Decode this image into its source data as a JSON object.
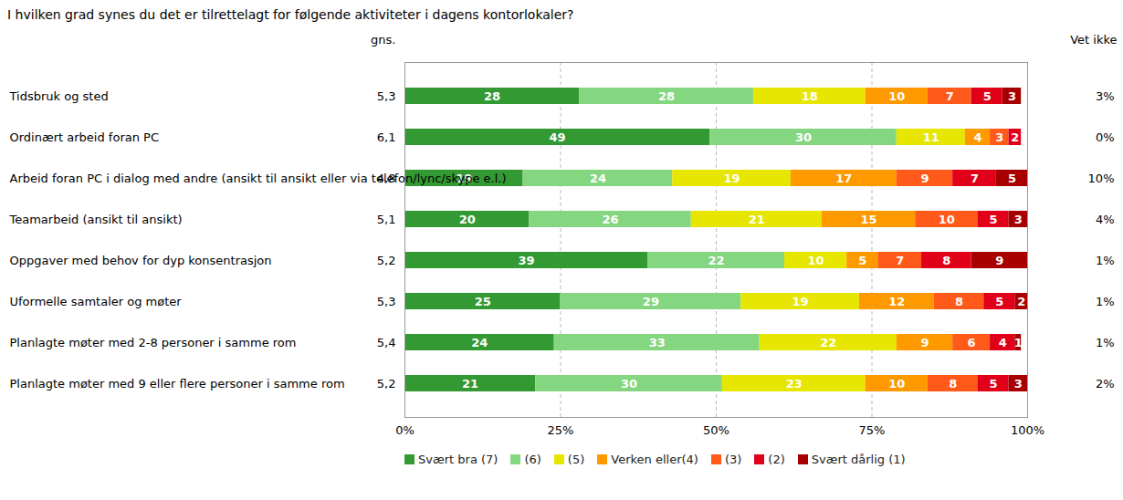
{
  "chart_data": {
    "type": "bar",
    "orientation": "horizontal",
    "stacked": true,
    "data_labels": true,
    "grid": true,
    "title": "I hvilken grad synes du det er tilrettelagt for følgende aktiviteter i dagens kontorlokaler?",
    "categories": [
      "Tidsbruk og sted",
      "Ordinært arbeid foran PC",
      "Arbeid foran PC i dialog med andre (ansikt til ansikt eller via telefon/lync/skype e.l.)",
      "Teamarbeid (ansikt til ansikt)",
      "Oppgaver med behov for dyp konsentrasjon",
      "Uformelle samtaler og møter",
      "Planlagte møter med 2-8 personer i samme rom",
      "Planlagte møter med 9 eller flere personer i samme rom"
    ],
    "series": [
      {
        "name": "Svært bra (7)",
        "color": "#339933",
        "values": [
          28,
          49,
          19,
          20,
          39,
          25,
          24,
          21
        ]
      },
      {
        "name": "(6)",
        "color": "#85d680",
        "values": [
          28,
          30,
          24,
          26,
          22,
          29,
          33,
          30
        ]
      },
      {
        "name": "(5)",
        "color": "#e6e600",
        "values": [
          18,
          11,
          19,
          21,
          10,
          19,
          22,
          23
        ]
      },
      {
        "name": "Verken eller(4)",
        "color": "#ff9900",
        "values": [
          10,
          4,
          17,
          15,
          5,
          12,
          9,
          10
        ]
      },
      {
        "name": "(3)",
        "color": "#ff5a1a",
        "values": [
          7,
          3,
          9,
          10,
          7,
          8,
          6,
          8
        ]
      },
      {
        "name": "(2)",
        "color": "#e0001a",
        "values": [
          5,
          2,
          7,
          5,
          8,
          5,
          4,
          5
        ]
      },
      {
        "name": "Svært dårlig (1)",
        "color": "#a80000",
        "values": [
          3,
          null,
          5,
          3,
          9,
          2,
          1,
          3
        ]
      }
    ],
    "xlim": [
      0,
      100
    ],
    "xticks": [
      {
        "value": 0,
        "label": "0%"
      },
      {
        "value": 25,
        "label": "25%"
      },
      {
        "value": 50,
        "label": "50%"
      },
      {
        "value": 75,
        "label": "75%"
      },
      {
        "value": 100,
        "label": "100%"
      }
    ],
    "averages": {
      "title": "gns.",
      "values": [
        5.3,
        6.1,
        4.8,
        5.1,
        5.2,
        5.3,
        5.4,
        5.2
      ],
      "value_labels": [
        "5,3",
        "6,1",
        "4,8",
        "5,1",
        "5,2",
        "5,3",
        "5,4",
        "5,2"
      ]
    },
    "dont_know": {
      "title": "Vet ikke",
      "values": [
        3,
        0,
        10,
        4,
        1,
        1,
        1,
        2
      ],
      "value_labels": [
        "3%",
        "0%",
        "10%",
        "4%",
        "1%",
        "1%",
        "1%",
        "2%"
      ]
    }
  }
}
